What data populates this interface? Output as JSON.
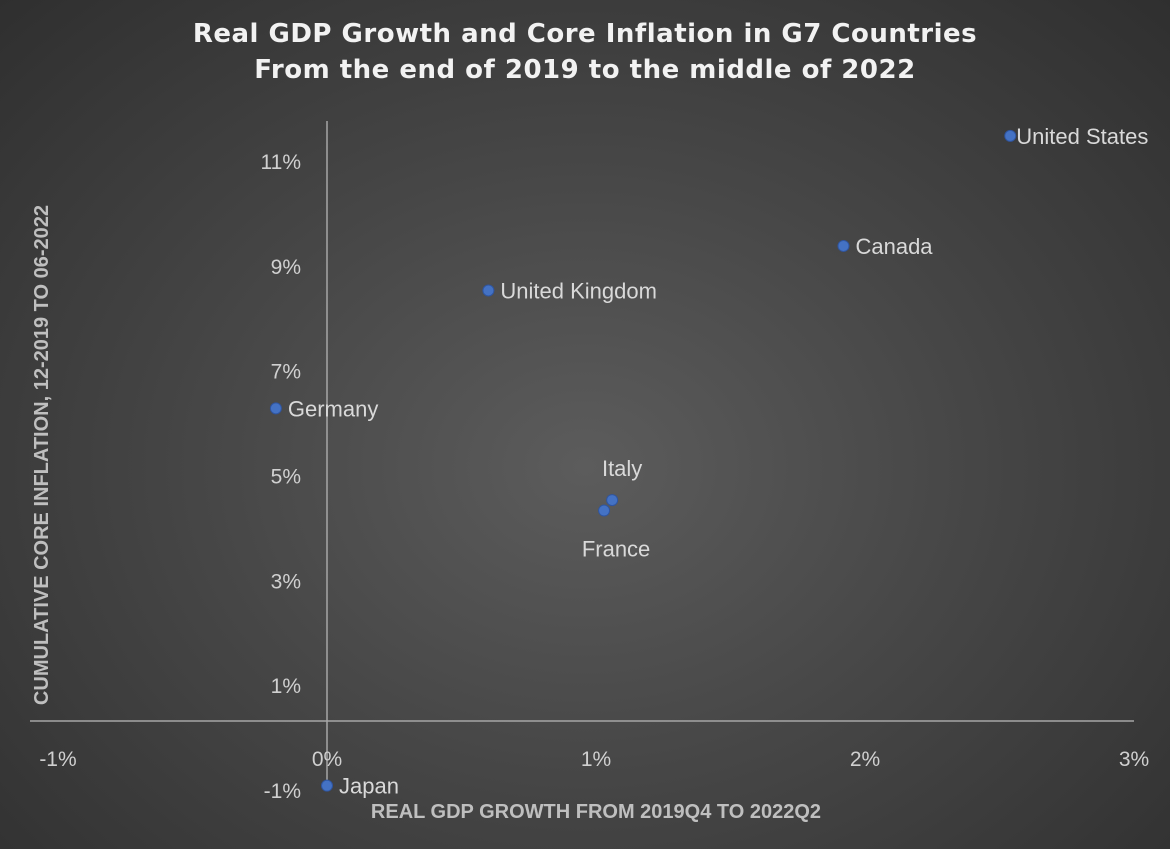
{
  "chart_data": {
    "type": "scatter",
    "title": "Real GDP Growth and Core Inflation in G7 Countries",
    "subtitle": "From the end of 2019 to the middle of 2022",
    "xlabel": "REAL GDP GROWTH FROM 2019Q4 TO 2022Q2",
    "ylabel": "CUMULATIVE CORE INFLATION, 12-2019 TO 06-2022",
    "xlim": [
      -1,
      3
    ],
    "ylim": [
      -1,
      12
    ],
    "x_ticks": [
      {
        "value": -1,
        "label": "-1%"
      },
      {
        "value": 0,
        "label": "0%"
      },
      {
        "value": 1,
        "label": "1%"
      },
      {
        "value": 2,
        "label": "2%"
      },
      {
        "value": 3,
        "label": "3%"
      }
    ],
    "y_ticks": [
      {
        "value": -1,
        "label": "-1%"
      },
      {
        "value": 1,
        "label": "1%"
      },
      {
        "value": 3,
        "label": "3%"
      },
      {
        "value": 5,
        "label": "5%"
      },
      {
        "value": 7,
        "label": "7%"
      },
      {
        "value": 9,
        "label": "9%"
      },
      {
        "value": 11,
        "label": "11%"
      }
    ],
    "grid": false,
    "marker_color": "#4472c4",
    "points": [
      {
        "label": "United States",
        "x": 2.54,
        "y": 11.5,
        "label_pos": "right"
      },
      {
        "label": "Canada",
        "x": 1.92,
        "y": 9.4,
        "label_pos": "right"
      },
      {
        "label": "United Kingdom",
        "x": 0.6,
        "y": 8.55,
        "label_pos": "right"
      },
      {
        "label": "Germany",
        "x": -0.19,
        "y": 6.3,
        "label_pos": "right"
      },
      {
        "label": "Italy",
        "x": 1.06,
        "y": 4.55,
        "label_pos": "above"
      },
      {
        "label": "France",
        "x": 1.03,
        "y": 4.35,
        "label_pos": "below"
      },
      {
        "label": "Japan",
        "x": 0.0,
        "y": -0.9,
        "label_pos": "right"
      }
    ]
  }
}
